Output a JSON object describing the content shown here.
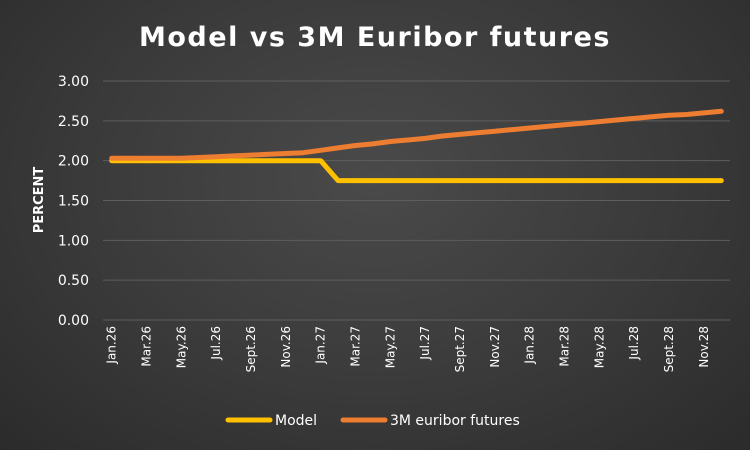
{
  "chart_data": {
    "type": "line",
    "title": "Model vs 3M Euribor futures",
    "ylabel": "PERCENT",
    "xlabel": "",
    "ylim": [
      0,
      3.0
    ],
    "yticks": [
      "0.00",
      "0.50",
      "1.00",
      "1.50",
      "2.00",
      "2.50",
      "3.00"
    ],
    "grid": true,
    "legend_position": "bottom",
    "x": [
      "Jan.26",
      "Feb.26",
      "Mar.26",
      "Apr.26",
      "May.26",
      "Jun.26",
      "Jul.26",
      "Aug.26",
      "Sept.26",
      "Oct.26",
      "Nov.26",
      "Dec.26",
      "Jan.27",
      "Feb.27",
      "Mar.27",
      "Apr.27",
      "May.27",
      "Jun.27",
      "Jul.27",
      "Aug.27",
      "Sept.27",
      "Oct.27",
      "Nov.27",
      "Dec.27",
      "Jan.28",
      "Feb.28",
      "Mar.28",
      "Apr.28",
      "May.28",
      "Jun.28",
      "Jul.28",
      "Aug.28",
      "Sept.28",
      "Oct.28",
      "Nov.28",
      "Dec.28"
    ],
    "tick_labels": [
      "Jan.26",
      "Mar.26",
      "May.26",
      "Jul.26",
      "Sept.26",
      "Nov.26",
      "Jan.27",
      "Mar.27",
      "May.27",
      "Jul.27",
      "Sept.27",
      "Nov.27",
      "Jan.28",
      "Mar.28",
      "May.28",
      "Jul.28",
      "Sept.28",
      "Nov.28"
    ],
    "series": [
      {
        "name": "Model",
        "color": "#FFC000",
        "values": [
          2.0,
          2.0,
          2.0,
          2.0,
          2.0,
          2.0,
          2.0,
          2.0,
          2.0,
          2.0,
          2.0,
          2.0,
          2.0,
          1.75,
          1.75,
          1.75,
          1.75,
          1.75,
          1.75,
          1.75,
          1.75,
          1.75,
          1.75,
          1.75,
          1.75,
          1.75,
          1.75,
          1.75,
          1.75,
          1.75,
          1.75,
          1.75,
          1.75,
          1.75,
          1.75,
          1.75
        ]
      },
      {
        "name": "3M euribor futures",
        "color": "#ED7D31",
        "values": [
          2.03,
          2.03,
          2.03,
          2.03,
          2.03,
          2.04,
          2.05,
          2.06,
          2.07,
          2.08,
          2.09,
          2.1,
          2.13,
          2.16,
          2.19,
          2.21,
          2.24,
          2.26,
          2.28,
          2.31,
          2.33,
          2.35,
          2.37,
          2.39,
          2.41,
          2.43,
          2.45,
          2.47,
          2.49,
          2.51,
          2.53,
          2.55,
          2.57,
          2.58,
          2.6,
          2.62
        ]
      }
    ]
  }
}
